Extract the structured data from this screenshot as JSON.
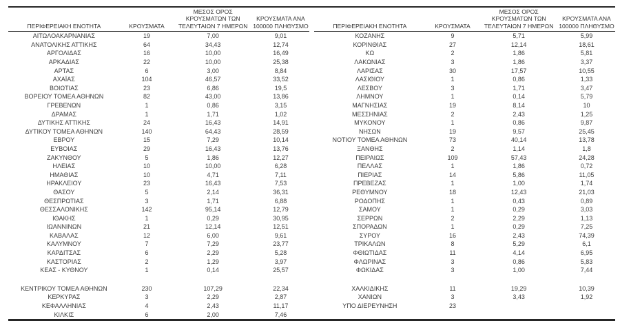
{
  "colors": {
    "text": "#3d3d3d",
    "line": "#262626",
    "background": "#ffffff"
  },
  "headers": {
    "region": "ΠΕΡΙΦΕΡΕΙΑΚΗ ΕΝΟΤΗΤΑ",
    "cases": "ΚΡΟΥΣΜΑΤΑ",
    "avg7": "ΜΕΣΟΣ ΟΡΟΣ\nΚΡΟΥΣΜΑΤΩΝ ΤΩΝ\nΤΕΛΕΥΤΑΙΩΝ 7 ΗΜΕΡΩΝ",
    "per100k": "ΚΡΟΥΣΜΑΤΑ ΑΝΑ\n100000 ΠΛΗΘΥΣΜΟ"
  },
  "tables": [
    {
      "id": "left",
      "groups": [
        [
          [
            "ΑΙΤΩΛΟΑΚΑΡΝΑΝΙΑΣ",
            "19",
            "7,00",
            "9,01"
          ],
          [
            "ΑΝΑΤΟΛΙΚΗΣ ΑΤΤΙΚΗΣ",
            "64",
            "34,43",
            "12,74"
          ],
          [
            "ΑΡΓΟΛΙΔΑΣ",
            "16",
            "10,00",
            "16,49"
          ],
          [
            "ΑΡΚΑΔΙΑΣ",
            "22",
            "10,00",
            "25,38"
          ],
          [
            "ΑΡΤΑΣ",
            "6",
            "3,00",
            "8,84"
          ],
          [
            "ΑΧΑΪΑΣ",
            "104",
            "46,57",
            "33,52"
          ],
          [
            "ΒΟΙΩΤΙΑΣ",
            "23",
            "6,86",
            "19,5"
          ],
          [
            "ΒΟΡΕΙΟΥ ΤΟΜΕΑ ΑΘΗΝΩΝ",
            "82",
            "43,00",
            "13,86"
          ],
          [
            "ΓΡΕΒΕΝΩΝ",
            "1",
            "0,86",
            "3,15"
          ],
          [
            "ΔΡΑΜΑΣ",
            "1",
            "1,71",
            "1,02"
          ],
          [
            "ΔΥΤΙΚΗΣ ΑΤΤΙΚΗΣ",
            "24",
            "16,43",
            "14,91"
          ],
          [
            "ΔΥΤΙΚΟΥ ΤΟΜΕΑ ΑΘΗΝΩΝ",
            "140",
            "64,43",
            "28,59"
          ],
          [
            "ΕΒΡΟΥ",
            "15",
            "7,29",
            "10,14"
          ],
          [
            "ΕΥΒΟΙΑΣ",
            "29",
            "16,43",
            "13,76"
          ],
          [
            "ΖΑΚΥΝΘΟΥ",
            "5",
            "1,86",
            "12,27"
          ],
          [
            "ΗΛΕΙΑΣ",
            "10",
            "10,00",
            "6,28"
          ],
          [
            "ΗΜΑΘΙΑΣ",
            "10",
            "4,71",
            "7,11"
          ],
          [
            "ΗΡΑΚΛΕΙΟΥ",
            "23",
            "16,43",
            "7,53"
          ],
          [
            "ΘΑΣΟΥ",
            "5",
            "2,14",
            "36,31"
          ],
          [
            "ΘΕΣΠΡΩΤΙΑΣ",
            "3",
            "1,71",
            "6,88"
          ],
          [
            "ΘΕΣΣΑΛΟΝΙΚΗΣ",
            "142",
            "95,14",
            "12,79"
          ],
          [
            "ΙΘΑΚΗΣ",
            "1",
            "0,29",
            "30,95"
          ],
          [
            "ΙΩΑΝΝΙΝΩΝ",
            "21",
            "12,14",
            "12,51"
          ],
          [
            "ΚΑΒΑΛΑΣ",
            "12",
            "6,00",
            "9,61"
          ],
          [
            "ΚΑΛΥΜΝΟΥ",
            "7",
            "7,29",
            "23,77"
          ],
          [
            "ΚΑΡΔΙΤΣΑΣ",
            "6",
            "2,29",
            "5,28"
          ],
          [
            "ΚΑΣΤΟΡΙΑΣ",
            "2",
            "1,29",
            "3,97"
          ],
          [
            "ΚΕΑΣ - ΚΥΘΝΟΥ",
            "1",
            "0,14",
            "25,57"
          ]
        ],
        [
          [
            "ΚΕΝΤΡΙΚΟΥ ΤΟΜΕΑ ΑΘΗΝΩΝ",
            "230",
            "107,29",
            "22,34"
          ],
          [
            "ΚΕΡΚΥΡΑΣ",
            "3",
            "2,29",
            "2,87"
          ],
          [
            "ΚΕΦΑΛΛΗΝΙΑΣ",
            "4",
            "2,43",
            "11,17"
          ],
          [
            "ΚΙΛΚΙΣ",
            "6",
            "2,00",
            "7,46"
          ]
        ]
      ]
    },
    {
      "id": "right",
      "groups": [
        [
          [
            "ΚΟΖΑΝΗΣ",
            "9",
            "5,71",
            "5,99"
          ],
          [
            "ΚΟΡΙΝΘΙΑΣ",
            "27",
            "12,14",
            "18,61"
          ],
          [
            "ΚΩ",
            "2",
            "1,86",
            "5,81"
          ],
          [
            "ΛΑΚΩΝΙΑΣ",
            "3",
            "1,86",
            "3,37"
          ],
          [
            "ΛΑΡΙΣΑΣ",
            "30",
            "17,57",
            "10,55"
          ],
          [
            "ΛΑΣΙΘΙΟΥ",
            "1",
            "0,86",
            "1,33"
          ],
          [
            "ΛΕΣΒΟΥ",
            "3",
            "1,71",
            "3,47"
          ],
          [
            "ΛΗΜΝΟΥ",
            "1",
            "0,14",
            "5,79"
          ],
          [
            "ΜΑΓΝΗΣΙΑΣ",
            "19",
            "8,14",
            "10"
          ],
          [
            "ΜΕΣΣΗΝΙΑΣ",
            "2",
            "2,43",
            "1,25"
          ],
          [
            "ΜΥΚΟΝΟΥ",
            "1",
            "0,86",
            "9,87"
          ],
          [
            "ΝΗΣΩΝ",
            "19",
            "9,57",
            "25,45"
          ],
          [
            "ΝΟΤΙΟΥ ΤΟΜΕΑ ΑΘΗΝΩΝ",
            "73",
            "40,14",
            "13,78"
          ],
          [
            "ΞΑΝΘΗΣ",
            "2",
            "1,14",
            "1,8"
          ],
          [
            "ΠΕΙΡΑΙΩΣ",
            "109",
            "57,43",
            "24,28"
          ],
          [
            "ΠΕΛΛΑΣ",
            "1",
            "1,86",
            "0,72"
          ],
          [
            "ΠΙΕΡΙΑΣ",
            "14",
            "5,86",
            "11,05"
          ],
          [
            "ΠΡΕΒΕΖΑΣ",
            "1",
            "1,00",
            "1,74"
          ],
          [
            "ΡΕΘΥΜΝΟΥ",
            "18",
            "12,43",
            "21,03"
          ],
          [
            "ΡΟΔΟΠΗΣ",
            "1",
            "0,43",
            "0,89"
          ],
          [
            "ΣΑΜΟΥ",
            "1",
            "0,29",
            "3,03"
          ],
          [
            "ΣΕΡΡΩΝ",
            "2",
            "2,29",
            "1,13"
          ],
          [
            "ΣΠΟΡΑΔΩΝ",
            "1",
            "0,29",
            "7,25"
          ],
          [
            "ΣΥΡΟΥ",
            "16",
            "2,43",
            "74,39"
          ],
          [
            "ΤΡΙΚΑΛΩΝ",
            "8",
            "5,29",
            "6,1"
          ],
          [
            "ΦΘΙΩΤΙΔΑΣ",
            "11",
            "4,14",
            "6,95"
          ],
          [
            "ΦΛΩΡΙΝΑΣ",
            "3",
            "0,86",
            "5,83"
          ],
          [
            "ΦΩΚΙΔΑΣ",
            "3",
            "1,00",
            "7,44"
          ]
        ],
        [
          [
            "ΧΑΛΚΙΔΙΚΗΣ",
            "11",
            "19,29",
            "10,39"
          ],
          [
            "ΧΑΝΙΩΝ",
            "3",
            "3,43",
            "1,92"
          ],
          [
            "ΥΠΟ ΔΙΕΡΕΥΝΗΣΗ",
            "23",
            "",
            ""
          ]
        ]
      ]
    }
  ]
}
